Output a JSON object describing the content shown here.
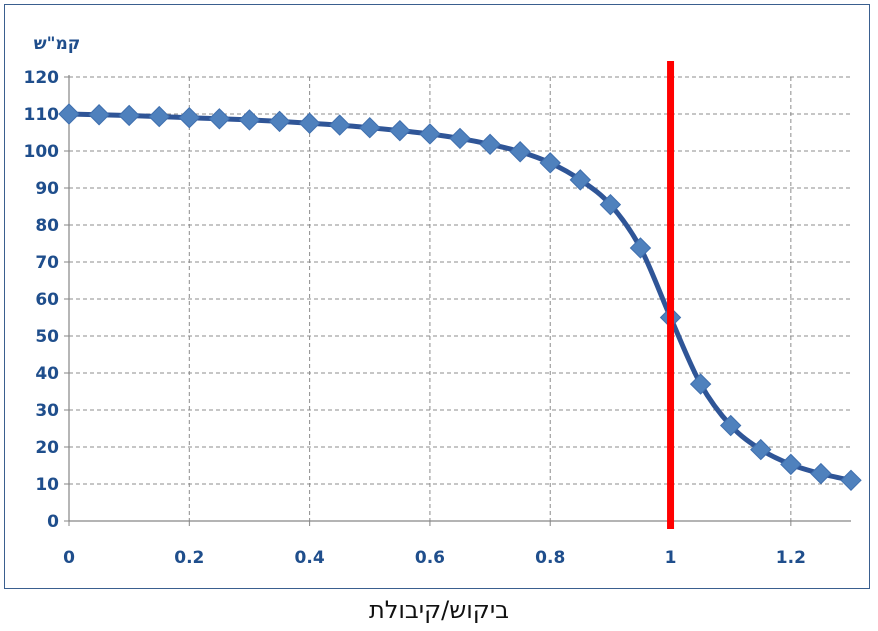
{
  "chart_data": {
    "type": "line",
    "xlabel": "ביקוש/קיבולת",
    "ylabel": "קמ\"ש",
    "xlim": [
      0,
      1.3
    ],
    "ylim": [
      0,
      120
    ],
    "x_ticks": [
      0,
      0.2,
      0.4,
      0.6,
      0.8,
      1,
      1.2
    ],
    "y_ticks": [
      0,
      10,
      20,
      30,
      40,
      50,
      60,
      70,
      80,
      90,
      100,
      110,
      120
    ],
    "grid": true,
    "series": [
      {
        "x": [
          0,
          0.05,
          0.1,
          0.15,
          0.2,
          0.25,
          0.3,
          0.35,
          0.4,
          0.45,
          0.5,
          0.55,
          0.6,
          0.65,
          0.7,
          0.75,
          0.8,
          0.85,
          0.9,
          0.95,
          1.0,
          1.05,
          1.1,
          1.15,
          1.2,
          1.25,
          1.3
        ],
        "values": [
          110,
          109.8,
          109.6,
          109.3,
          109,
          108.7,
          108.4,
          108,
          107.5,
          107,
          106.3,
          105.5,
          104.6,
          103.4,
          101.8,
          99.8,
          96.8,
          92.2,
          85.5,
          73.8,
          55,
          37,
          25.8,
          19.3,
          15.3,
          12.8,
          11
        ],
        "color": "#2f5597",
        "marker_color": "#4f81bd",
        "marker": "diamond"
      }
    ],
    "reference_line": {
      "x": 1,
      "color": "#ff0000"
    }
  }
}
